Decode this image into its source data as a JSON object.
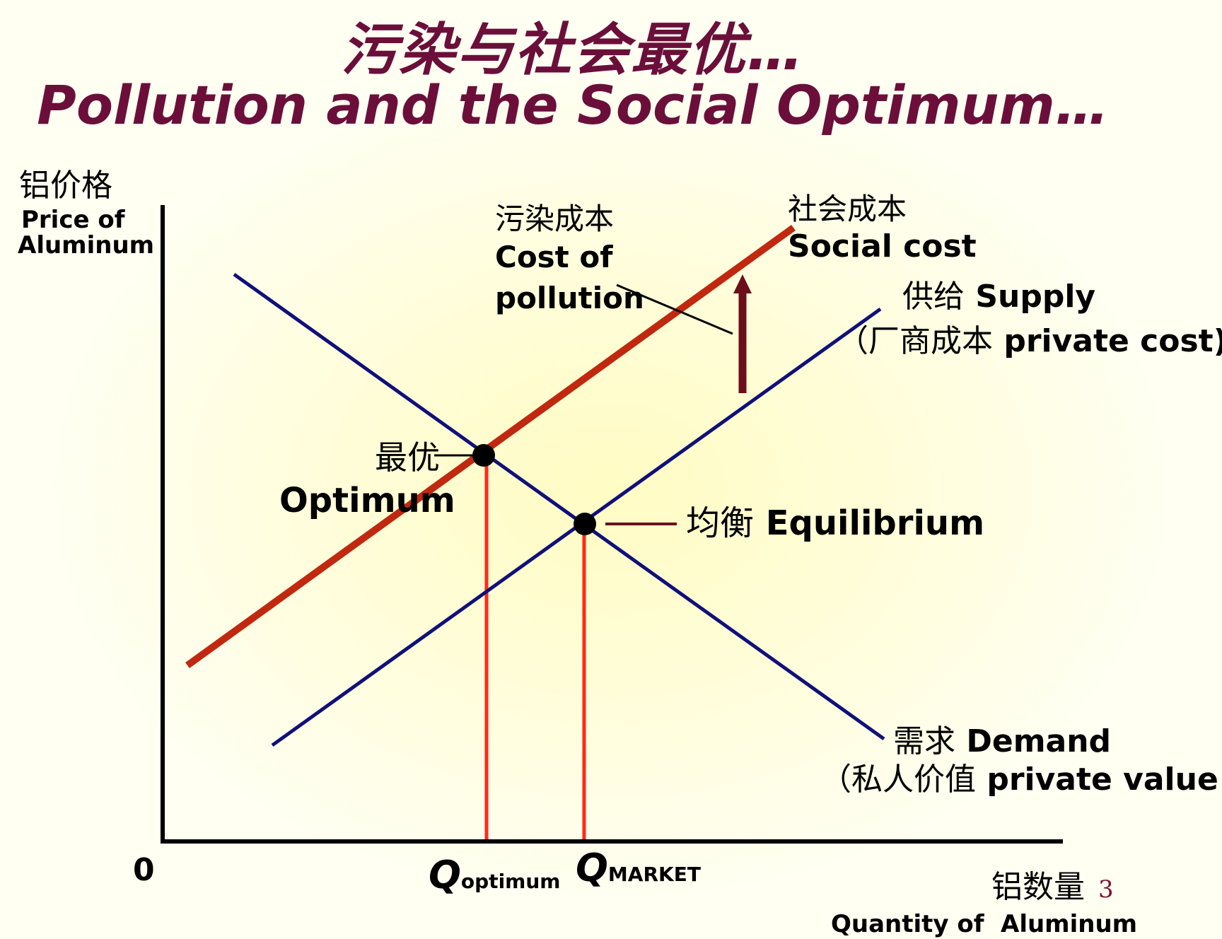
{
  "title": {
    "cn": "污染与社会最优…",
    "en": "Pollution and the Social Optimum…"
  },
  "axes": {
    "y_label_cn": "铝价格",
    "y_label_en_1": "Price of",
    "y_label_en_2": "Aluminum",
    "x_label_cn": "铝数量",
    "x_label_en_1": "Quantity of",
    "x_label_en_2": "Aluminum",
    "origin": "0"
  },
  "labels": {
    "pollution_cost_cn": "污染成本",
    "pollution_cost_en_1": "Cost of",
    "pollution_cost_en_2": "pollution",
    "social_cost_cn": "社会成本",
    "social_cost_en": "Social cost",
    "supply_cn": "供给",
    "supply_en": "Supply",
    "supply_note_cn": "（厂商成本",
    "supply_note_en": "private cost)",
    "optimum_cn": "最优",
    "optimum_en": "Optimum",
    "equilibrium_cn": "均衡",
    "equilibrium_en": "Equilibrium",
    "demand_cn": "需求",
    "demand_en": "Demand",
    "demand_note_cn": "（私人价值",
    "demand_note_en": "private value",
    "q_optimum_letter": "Q",
    "q_optimum_sub": "optimum",
    "q_market_letter": "Q",
    "q_market_sub": "MARKET"
  },
  "page_number": "3",
  "colors": {
    "title": "#6b0f3a",
    "demand_supply_line": "#10107a",
    "social_cost_line": "#c0280f",
    "quantity_marker": "#ff2a1a",
    "pointer": "#6b0f1a"
  }
}
